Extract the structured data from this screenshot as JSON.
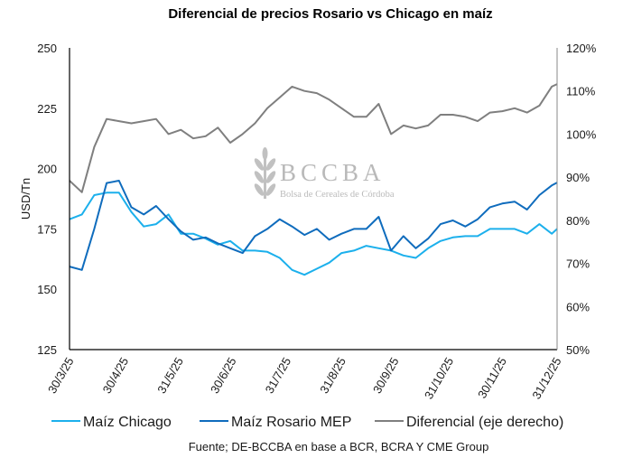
{
  "chart_data": {
    "type": "line",
    "title": "Diferencial de precios Rosario vs Chicago en maíz",
    "ylabel": "USD/Tn",
    "ylabel_right": "",
    "ylim": [
      125,
      250
    ],
    "yticks": [
      125,
      150,
      175,
      200,
      225,
      250
    ],
    "ylim_right": [
      50,
      120
    ],
    "yticks_right": [
      "50%",
      "60%",
      "70%",
      "80%",
      "90%",
      "100%",
      "110%",
      "120%"
    ],
    "xlim": [
      "2025-03-30",
      "2025-12-31"
    ],
    "xticks": [
      "30/3/25",
      "30/4/25",
      "31/5/25",
      "30/6/25",
      "31/7/25",
      "31/8/25",
      "30/9/25",
      "31/10/25",
      "30/11/25",
      "31/12/25"
    ],
    "grid": false,
    "legend_position": "bottom",
    "source": "Fuente; DE-BCCBA en base a BCR, BCRA Y CME Group",
    "watermark": {
      "name": "BCCBA",
      "subtitle": "Bolsa de Cereales de Córdoba"
    },
    "x": [
      "2025-03-30",
      "2025-04-06",
      "2025-04-13",
      "2025-04-20",
      "2025-04-27",
      "2025-05-04",
      "2025-05-11",
      "2025-05-18",
      "2025-05-25",
      "2025-06-01",
      "2025-06-08",
      "2025-06-15",
      "2025-06-22",
      "2025-06-29",
      "2025-07-06",
      "2025-07-13",
      "2025-07-20",
      "2025-07-27",
      "2025-08-03",
      "2025-08-10",
      "2025-08-17",
      "2025-08-24",
      "2025-08-31",
      "2025-09-07",
      "2025-09-14",
      "2025-09-21",
      "2025-09-28",
      "2025-10-05",
      "2025-10-12",
      "2025-10-19",
      "2025-10-26",
      "2025-11-02",
      "2025-11-09",
      "2025-11-16",
      "2025-11-23",
      "2025-11-30",
      "2025-12-07",
      "2025-12-14",
      "2025-12-21",
      "2025-12-28",
      "2025-12-31"
    ],
    "series": [
      {
        "name": "Maíz Chicago",
        "axis": "left",
        "color": "#1cb0ec",
        "values": [
          179,
          181,
          189,
          190,
          190,
          182,
          176,
          177,
          181,
          173,
          173,
          171,
          168.5,
          170,
          166,
          166,
          165.5,
          163,
          158,
          156,
          158.5,
          161,
          165,
          166,
          168,
          167,
          166,
          164,
          163,
          167,
          170,
          171.5,
          172,
          172,
          175,
          175,
          175,
          173,
          177,
          173,
          175
        ]
      },
      {
        "name": "Maíz Rosario MEP",
        "axis": "left",
        "color": "#0f6cbd",
        "values": [
          159.4,
          158,
          175,
          194,
          195,
          184,
          181,
          184.5,
          179,
          174,
          170.5,
          171.5,
          169,
          167,
          165,
          172,
          175,
          179,
          176,
          172.5,
          175,
          170.5,
          173,
          175,
          175,
          180,
          166,
          172,
          167,
          171,
          177,
          178.5,
          176,
          179,
          184,
          185.5,
          186.3,
          183,
          189,
          193,
          194.2
        ]
      },
      {
        "name": "Diferencial (eje derecho)",
        "axis": "right",
        "color": "#7f7f7f",
        "values": [
          89.2,
          86.5,
          97,
          103.5,
          103,
          102.5,
          103,
          103.5,
          100,
          101,
          99,
          99.5,
          101.5,
          98,
          100,
          102.5,
          106,
          108.5,
          111,
          110,
          109.5,
          108,
          106,
          104,
          104,
          107,
          100,
          102,
          101.3,
          102,
          104.5,
          104.5,
          104,
          103,
          105,
          105.3,
          106,
          105,
          106.6,
          111,
          111.6
        ]
      }
    ]
  }
}
